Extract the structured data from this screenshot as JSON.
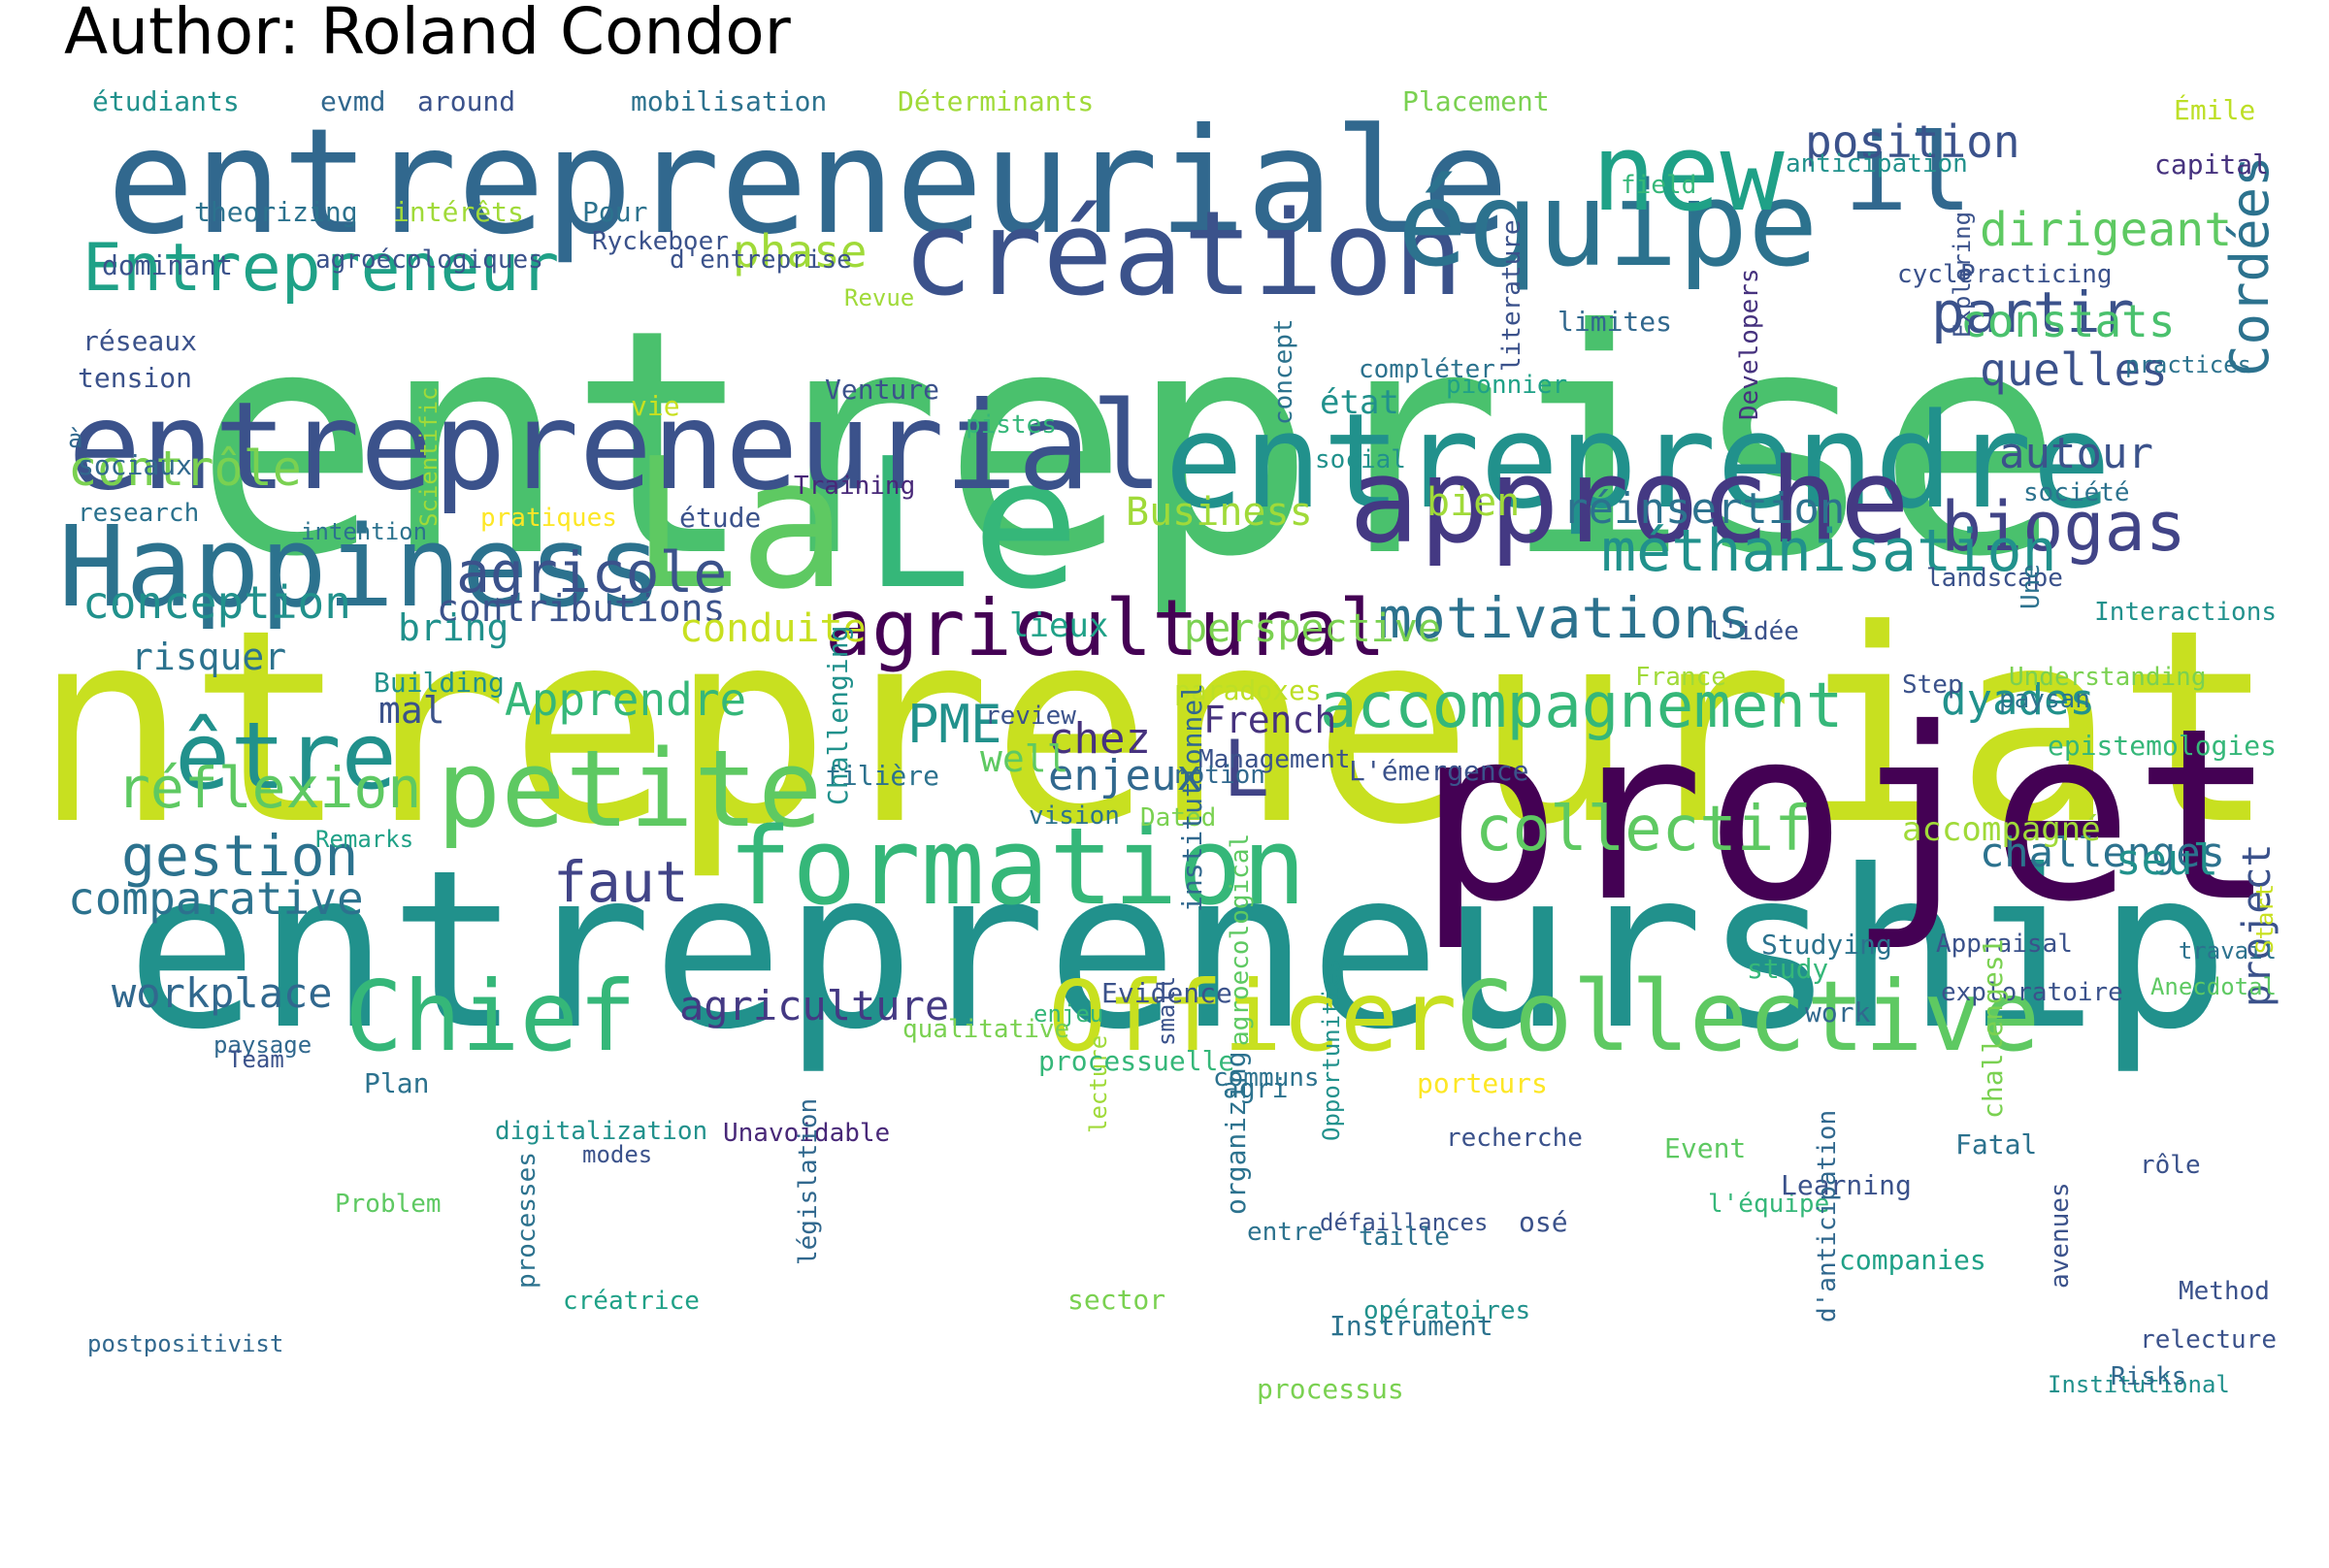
{
  "title": "Author: Roland Condor",
  "words": [
    {
      "text": "entreprise",
      "color": "#4ac16d",
      "rot": 0
    },
    {
      "text": "entrepreneuriat",
      "color": "#c8e020",
      "rot": 0
    },
    {
      "text": "entrepreneurship",
      "color": "#21918c",
      "rot": 0
    },
    {
      "text": "projet",
      "color": "#440154",
      "rot": 0
    },
    {
      "text": "entrepreneuriale",
      "color": "#31688e",
      "rot": 0
    },
    {
      "text": "La",
      "color": "#5ec962",
      "rot": 0
    },
    {
      "text": "Le",
      "color": "#35b779",
      "rot": 0
    },
    {
      "text": "entreprendre",
      "color": "#21918c",
      "rot": 0
    },
    {
      "text": "entrepreneurial",
      "color": "#3b528b",
      "rot": 0
    },
    {
      "text": "approche",
      "color": "#443983",
      "rot": 0
    },
    {
      "text": "création",
      "color": "#3b528b",
      "rot": 0
    },
    {
      "text": "équipe",
      "color": "#2c728e",
      "rot": 0
    },
    {
      "text": "new",
      "color": "#1fa187",
      "rot": 0
    },
    {
      "text": "il",
      "color": "#31688e",
      "rot": 0
    },
    {
      "text": "Happiness",
      "color": "#2c728e",
      "rot": 0
    },
    {
      "text": "petite",
      "color": "#5ec962",
      "rot": 0
    },
    {
      "text": "formation",
      "color": "#35b779",
      "rot": 0
    },
    {
      "text": "Chief",
      "color": "#35b779",
      "rot": 0
    },
    {
      "text": "Officer",
      "color": "#c8e020",
      "rot": 0
    },
    {
      "text": "Collective",
      "color": "#5ec962",
      "rot": 0
    },
    {
      "text": "agricultural",
      "color": "#440154",
      "rot": 0
    },
    {
      "text": "être",
      "color": "#21918c",
      "rot": 0
    },
    {
      "text": "L",
      "color": "#414487",
      "rot": 0
    },
    {
      "text": "Entrepreneur",
      "color": "#1fa187",
      "rot": 0
    },
    {
      "text": "biogas",
      "color": "#414487",
      "rot": 0
    },
    {
      "text": "accompagnement",
      "color": "#35b779",
      "rot": 0
    },
    {
      "text": "méthanisation",
      "color": "#21918c",
      "rot": 0
    },
    {
      "text": "motivations",
      "color": "#2c728e",
      "rot": 0
    },
    {
      "text": "collectif",
      "color": "#5ec962",
      "rot": 0
    },
    {
      "text": "réflexion",
      "color": "#5ec962",
      "rot": 0
    },
    {
      "text": "gestion",
      "color": "#2c728e",
      "rot": 0
    },
    {
      "text": "partir",
      "color": "#3b528b",
      "rot": 0
    },
    {
      "text": "position",
      "color": "#3b528b",
      "rot": 0
    },
    {
      "text": "dirigeant",
      "color": "#5ec962",
      "rot": 0
    },
    {
      "text": "constats",
      "color": "#4ac16d",
      "rot": 0
    },
    {
      "text": "quelles",
      "color": "#3b528b",
      "rot": 0
    },
    {
      "text": "Cordées",
      "color": "#2c728e",
      "rot": -90
    },
    {
      "text": "autour",
      "color": "#3b528b",
      "rot": 0
    },
    {
      "text": "agricole",
      "color": "#3b528b",
      "rot": 0
    },
    {
      "text": "contrôle",
      "color": "#7ad151",
      "rot": 0
    },
    {
      "text": "conception",
      "color": "#21918c",
      "rot": 0
    },
    {
      "text": "faut",
      "color": "#414487",
      "rot": 0
    },
    {
      "text": "PME",
      "color": "#21918c",
      "rot": 0
    },
    {
      "text": "phase",
      "color": "#a0da39",
      "rot": 0
    },
    {
      "text": "enjeux",
      "color": "#31688e",
      "rot": 0
    },
    {
      "text": "chez",
      "color": "#46327e",
      "rot": 0
    },
    {
      "text": "Apprendre",
      "color": "#35b779",
      "rot": 0
    },
    {
      "text": "comparative",
      "color": "#2c728e",
      "rot": 0
    },
    {
      "text": "challenges",
      "color": "#2c728e",
      "rot": 0
    },
    {
      "text": "workplace",
      "color": "#31688e",
      "rot": 0
    },
    {
      "text": "agriculture",
      "color": "#443983",
      "rot": 0
    },
    {
      "text": "contributions",
      "color": "#3b528b",
      "rot": 0
    },
    {
      "text": "réinsertion",
      "color": "#2c728e",
      "rot": 0
    },
    {
      "text": "conduite",
      "color": "#c8e020",
      "rot": 0
    },
    {
      "text": "perspective",
      "color": "#7ad151",
      "rot": 0
    },
    {
      "text": "dyades",
      "color": "#21918c",
      "rot": 0
    },
    {
      "text": "project",
      "color": "#3b528b",
      "rot": -90
    },
    {
      "text": "seul",
      "color": "#21918c",
      "rot": 0
    },
    {
      "text": "French",
      "color": "#46327e",
      "rot": 0
    },
    {
      "text": "bien",
      "color": "#a0da39",
      "rot": 0
    },
    {
      "text": "Business",
      "color": "#a0da39",
      "rot": 0
    },
    {
      "text": "well",
      "color": "#5ec962",
      "rot": 0
    },
    {
      "text": "lieux",
      "color": "#1fa187",
      "rot": 0
    },
    {
      "text": "bring",
      "color": "#21918c",
      "rot": 0
    },
    {
      "text": "risquer",
      "color": "#2c728e",
      "rot": 0
    },
    {
      "text": "mal",
      "color": "#3b528b",
      "rot": 0
    },
    {
      "text": "accompagné",
      "color": "#a0da39",
      "rot": 0
    },
    {
      "text": "état",
      "color": "#21918c",
      "rot": 0
    },
    {
      "text": "étudiants",
      "color": "#21918c",
      "rot": 0
    },
    {
      "text": "evmd",
      "color": "#31688e",
      "rot": 0
    },
    {
      "text": "around",
      "color": "#3b528b",
      "rot": 0
    },
    {
      "text": "mobilisation",
      "color": "#2c728e",
      "rot": 0
    },
    {
      "text": "Déterminants",
      "color": "#a0da39",
      "rot": 0
    },
    {
      "text": "Placement",
      "color": "#7ad151",
      "rot": 0
    },
    {
      "text": "Émile",
      "color": "#bddf26",
      "rot": 0
    },
    {
      "text": "anticipation",
      "color": "#21918c",
      "rot": 0
    },
    {
      "text": "capital",
      "color": "#46327e",
      "rot": 0
    },
    {
      "text": "theorizing",
      "color": "#2c728e",
      "rot": 0
    },
    {
      "text": "intérêts",
      "color": "#a0da39",
      "rot": 0
    },
    {
      "text": "Pour",
      "color": "#2c728e",
      "rot": 0
    },
    {
      "text": "Ryckeboer",
      "color": "#3b528b",
      "rot": 0
    },
    {
      "text": "field",
      "color": "#35b779",
      "rot": 0
    },
    {
      "text": "dominant",
      "color": "#3b528b",
      "rot": 0
    },
    {
      "text": "agroécologiques",
      "color": "#3b528b",
      "rot": 0
    },
    {
      "text": "d'entreprise",
      "color": "#3b528b",
      "rot": 0
    },
    {
      "text": "Revue",
      "color": "#a0da39",
      "rot": 0
    },
    {
      "text": "cycle",
      "color": "#3b528b",
      "rot": 0
    },
    {
      "text": "Practicing",
      "color": "#3b528b",
      "rot": 0
    },
    {
      "text": "réseaux",
      "color": "#3b528b",
      "rot": 0
    },
    {
      "text": "tension",
      "color": "#3b528b",
      "rot": 0
    },
    {
      "text": "limites",
      "color": "#31688e",
      "rot": 0
    },
    {
      "text": "Developers",
      "color": "#46327e",
      "rot": -90
    },
    {
      "text": "literature",
      "color": "#3b528b",
      "rot": -90
    },
    {
      "text": "concept",
      "color": "#2c728e",
      "rot": -90
    },
    {
      "text": "Scientific",
      "color": "#a0da39",
      "rot": -90
    },
    {
      "text": "Exploring",
      "color": "#3b528b",
      "rot": -90
    },
    {
      "text": "practices",
      "color": "#2c728e",
      "rot": 0
    },
    {
      "text": "compléter",
      "color": "#2c728e",
      "rot": 0
    },
    {
      "text": "pionnier",
      "color": "#1fa187",
      "rot": 0
    },
    {
      "text": "à",
      "color": "#31688e",
      "rot": 0
    },
    {
      "text": "vie",
      "color": "#c8e020",
      "rot": 0
    },
    {
      "text": "Venture",
      "color": "#3b528b",
      "rot": 0
    },
    {
      "text": "pistes",
      "color": "#35b779",
      "rot": 0
    },
    {
      "text": "social",
      "color": "#21918c",
      "rot": 0
    },
    {
      "text": "sociaux",
      "color": "#31688e",
      "rot": 0
    },
    {
      "text": "Training",
      "color": "#482878",
      "rot": 0
    },
    {
      "text": "société",
      "color": "#2c728e",
      "rot": 0
    },
    {
      "text": "research",
      "color": "#2c728e",
      "rot": 0
    },
    {
      "text": "intention",
      "color": "#2c728e",
      "rot": 0
    },
    {
      "text": "pratiques",
      "color": "#fde725",
      "rot": 0
    },
    {
      "text": "étude",
      "color": "#3b528b",
      "rot": 0
    },
    {
      "text": "landscape",
      "color": "#3b528b",
      "rot": 0
    },
    {
      "text": "Interactions",
      "color": "#21918c",
      "rot": 0
    },
    {
      "text": "Une",
      "color": "#2c728e",
      "rot": -90
    },
    {
      "text": "l'idée",
      "color": "#3b528b",
      "rot": 0
    },
    {
      "text": "France",
      "color": "#a0da39",
      "rot": 0
    },
    {
      "text": "Understanding",
      "color": "#7ad151",
      "rot": 0
    },
    {
      "text": "Building",
      "color": "#21918c",
      "rot": 0
    },
    {
      "text": "review",
      "color": "#3b528b",
      "rot": 0
    },
    {
      "text": "paradoxes",
      "color": "#bddf26",
      "rot": 0
    },
    {
      "text": "Step",
      "color": "#3b528b",
      "rot": 0
    },
    {
      "text": "Management",
      "color": "#3b528b",
      "rot": 0
    },
    {
      "text": "filière",
      "color": "#2c728e",
      "rot": 0
    },
    {
      "text": "Challenging",
      "color": "#21918c",
      "rot": -90
    },
    {
      "text": "Remarks",
      "color": "#1fa187",
      "rot": 0
    },
    {
      "text": "L'émergence",
      "color": "#3b528b",
      "rot": 0
    },
    {
      "text": "epistemologies",
      "color": "#35b779",
      "rot": 0
    },
    {
      "text": "notion",
      "color": "#31688e",
      "rot": 0
    },
    {
      "text": "paysan",
      "color": "#2c728e",
      "rot": 0
    },
    {
      "text": "vision",
      "color": "#2c728e",
      "rot": 0
    },
    {
      "text": "Dated",
      "color": "#7ad151",
      "rot": 0
    },
    {
      "text": "institutionnel",
      "color": "#31688e",
      "rot": -90
    },
    {
      "text": "Appraisal",
      "color": "#3b528b",
      "rot": 0
    },
    {
      "text": "exploratoire",
      "color": "#3b528b",
      "rot": 0
    },
    {
      "text": "small",
      "color": "#3b528b",
      "rot": -90
    },
    {
      "text": "agroecological",
      "color": "#5ec962",
      "rot": -90
    },
    {
      "text": "travail",
      "color": "#2c728e",
      "rot": 0
    },
    {
      "text": "Start",
      "color": "#c8e020",
      "rot": -90
    },
    {
      "text": "Studying",
      "color": "#2c728e",
      "rot": 0
    },
    {
      "text": "Event",
      "color": "#5ec962",
      "rot": 0
    },
    {
      "text": "study",
      "color": "#35b779",
      "rot": 0
    },
    {
      "text": "work",
      "color": "#31688e",
      "rot": 0
    },
    {
      "text": "enjeu",
      "color": "#35b779",
      "rot": 0
    },
    {
      "text": "communs",
      "color": "#2c728e",
      "rot": 0
    },
    {
      "text": "Evidence",
      "color": "#3b528b",
      "rot": 0
    },
    {
      "text": "Anecdotal",
      "color": "#5ec962",
      "rot": 0
    },
    {
      "text": "l'équipe",
      "color": "#35b779",
      "rot": 0
    },
    {
      "text": "Fatal",
      "color": "#2c728e",
      "rot": 0
    },
    {
      "text": "qualitative",
      "color": "#7ad151",
      "rot": 0
    },
    {
      "text": "paysage",
      "color": "#31688e",
      "rot": 0
    },
    {
      "text": "défaillances",
      "color": "#3b528b",
      "rot": 0
    },
    {
      "text": "porteurs",
      "color": "#fde725",
      "rot": 0
    },
    {
      "text": "agri",
      "color": "#2c728e",
      "rot": 0
    },
    {
      "text": "Opportunities",
      "color": "#21918c",
      "rot": -90
    },
    {
      "text": "challenges1",
      "color": "#7ad151",
      "rot": -90
    },
    {
      "text": "lecture",
      "color": "#a0da39",
      "rot": -90
    },
    {
      "text": "rôle",
      "color": "#3b528b",
      "rot": 0
    },
    {
      "text": "Plan",
      "color": "#2c728e",
      "rot": 0
    },
    {
      "text": "recherche",
      "color": "#3b528b",
      "rot": 0
    },
    {
      "text": "Team",
      "color": "#3b528b",
      "rot": 0
    },
    {
      "text": "Problem",
      "color": "#5ec962",
      "rot": 0
    },
    {
      "text": "processuelle",
      "color": "#35b779",
      "rot": 0
    },
    {
      "text": "Instrument",
      "color": "#2c728e",
      "rot": 0
    },
    {
      "text": "Learning",
      "color": "#3b528b",
      "rot": 0
    },
    {
      "text": "avenues",
      "color": "#3b528b",
      "rot": -90
    },
    {
      "text": "d'anticipation",
      "color": "#31688e",
      "rot": -90
    },
    {
      "text": "relecture",
      "color": "#3b528b",
      "rot": 0
    },
    {
      "text": "postpositivist",
      "color": "#31688e",
      "rot": 0
    },
    {
      "text": "digitalization",
      "color": "#21918c",
      "rot": 0
    },
    {
      "text": "modes",
      "color": "#3b528b",
      "rot": 0
    },
    {
      "text": "Unavoidable",
      "color": "#482878",
      "rot": 0
    },
    {
      "text": "créatrice",
      "color": "#1fa187",
      "rot": 0
    },
    {
      "text": "processes",
      "color": "#2c728e",
      "rot": -90
    },
    {
      "text": "législation",
      "color": "#31688e",
      "rot": -90
    },
    {
      "text": "organizing",
      "color": "#2c728e",
      "rot": -90
    },
    {
      "text": "entre",
      "color": "#2c728e",
      "rot": 0
    },
    {
      "text": "osé",
      "color": "#3b528b",
      "rot": 0
    },
    {
      "text": "taille",
      "color": "#2c728e",
      "rot": 0
    },
    {
      "text": "opératoires",
      "color": "#21918c",
      "rot": 0
    },
    {
      "text": "sector",
      "color": "#7ad151",
      "rot": 0
    },
    {
      "text": "companies",
      "color": "#1fa187",
      "rot": 0
    },
    {
      "text": "Institutional",
      "color": "#21918c",
      "rot": 0
    },
    {
      "text": "Risks",
      "color": "#31688e",
      "rot": 0
    },
    {
      "text": "Method",
      "color": "#3b528b",
      "rot": 0
    },
    {
      "text": "processus",
      "color": "#7ad151",
      "rot": 0
    }
  ]
}
